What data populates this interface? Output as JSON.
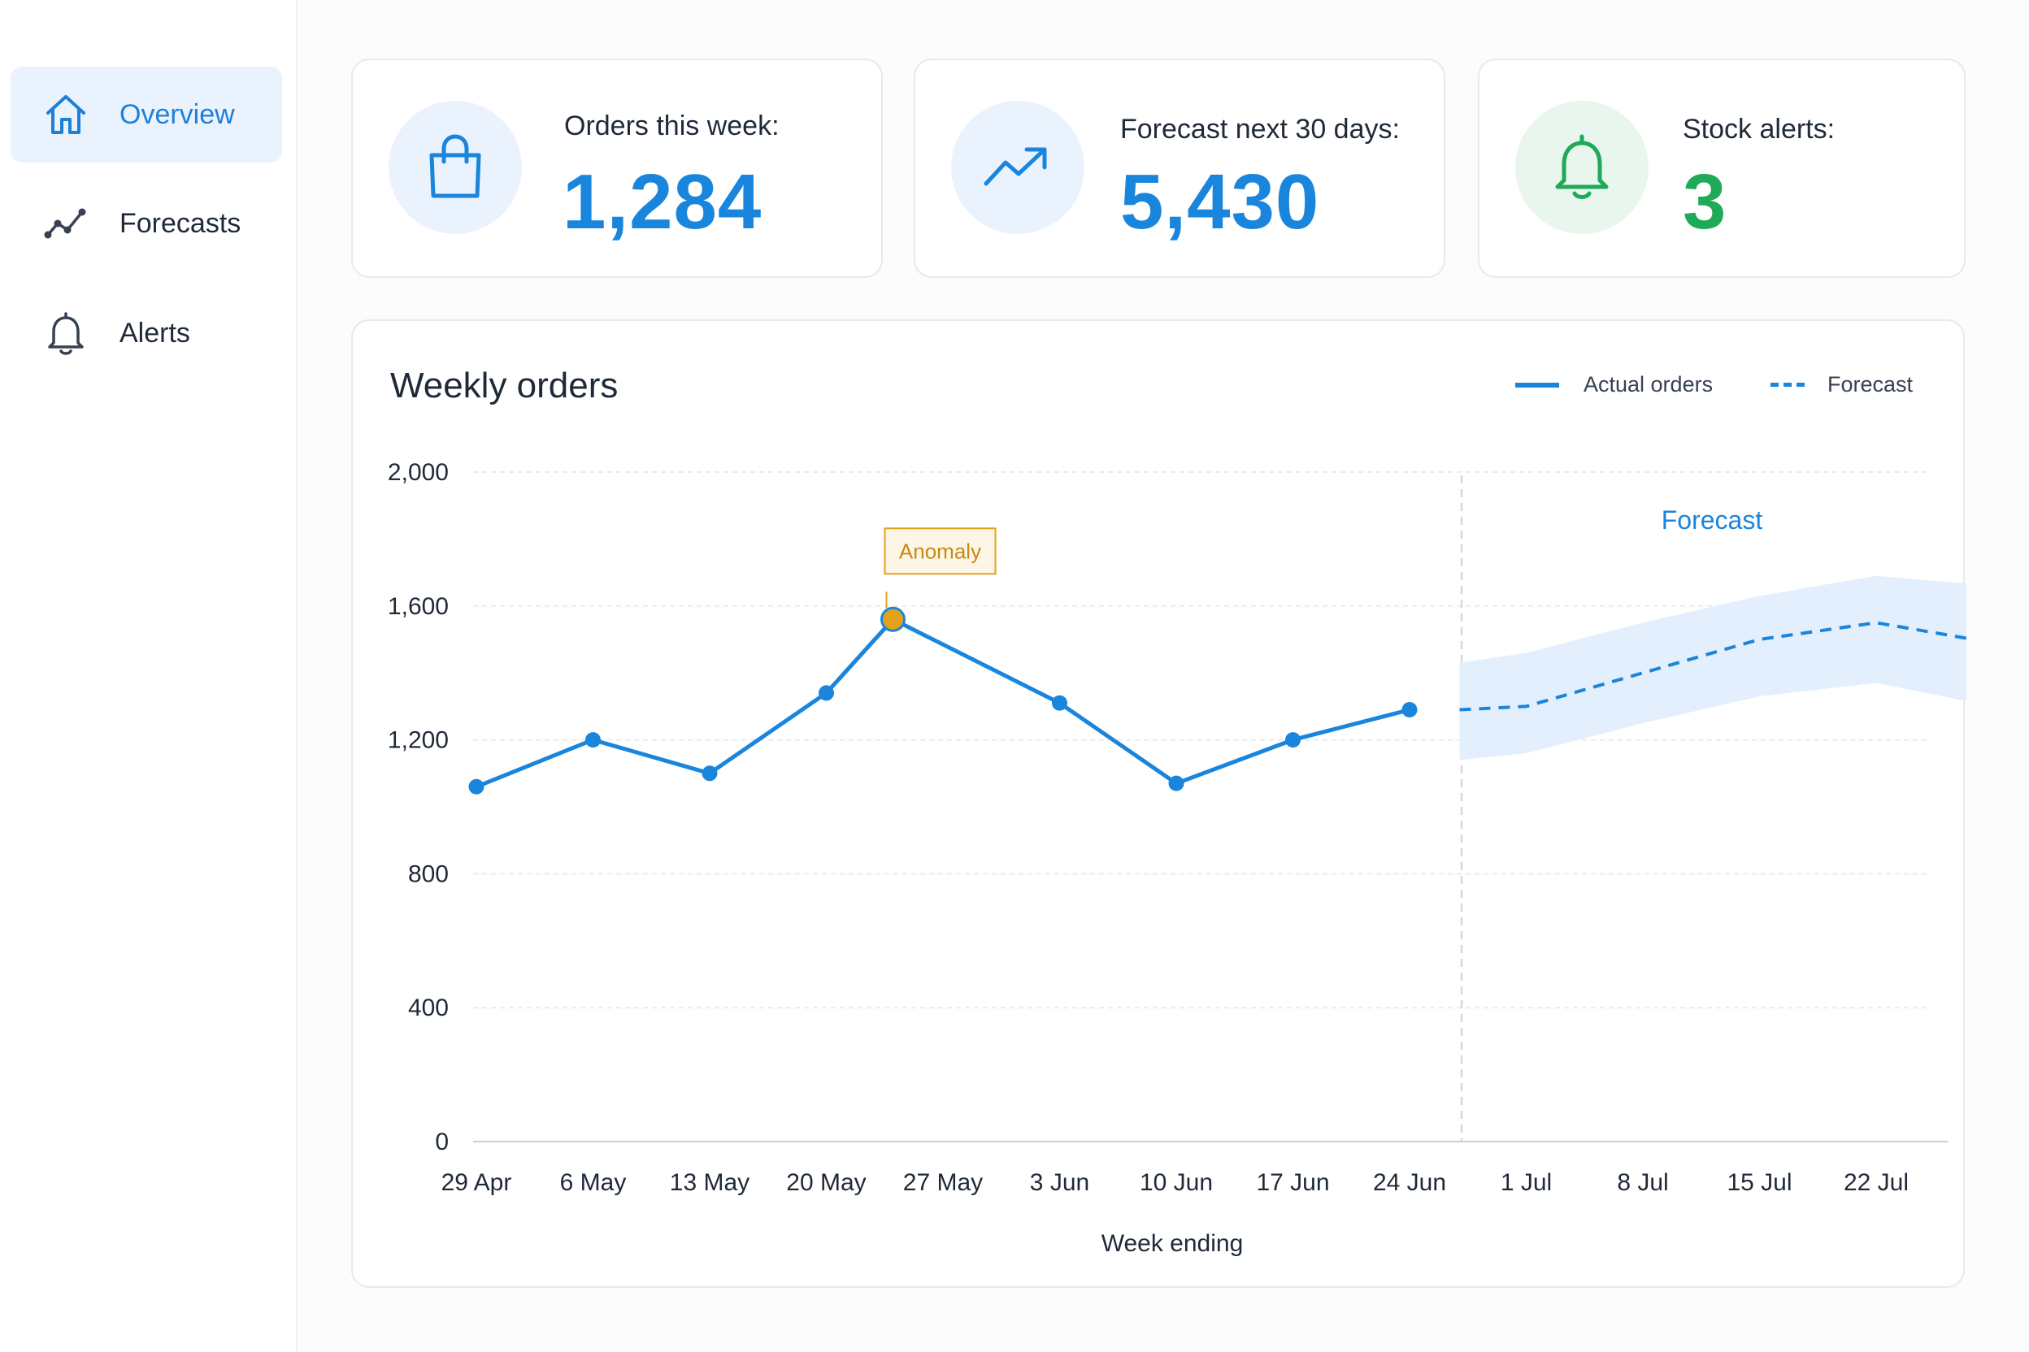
{
  "sidebar": {
    "items": [
      {
        "label": "Overview",
        "icon": "home-icon",
        "active": true
      },
      {
        "label": "Forecasts",
        "icon": "trend-line-icon",
        "active": false
      },
      {
        "label": "Alerts",
        "icon": "bell-icon",
        "active": false
      }
    ]
  },
  "kpis": {
    "orders": {
      "label": "Orders this week:",
      "value": "1,284",
      "icon": "shopping-bag-icon",
      "color": "#1a85dd"
    },
    "forecast": {
      "label": "Forecast next 30 days:",
      "value": "5,430",
      "icon": "trending-up-icon",
      "color": "#1a85dd"
    },
    "alerts": {
      "label": "Stock alerts:",
      "value": "3",
      "icon": "bell-icon",
      "color": "#1eaa57"
    }
  },
  "chart": {
    "title": "Weekly orders",
    "legend": {
      "actual": "Actual orders",
      "forecast": "Forecast"
    },
    "forecast_region_label": "Forecast",
    "anomaly_label": "Anomaly"
  },
  "colors": {
    "accent": "#1a85dd",
    "forecast_band": "#e3effc",
    "anomaly": "#e3a21a",
    "success": "#1eaa57"
  },
  "chart_data": {
    "type": "line",
    "title": "Weekly orders",
    "xlabel": "Week ending",
    "ylabel": "",
    "ylim": [
      0,
      2000
    ],
    "yticks": [
      "0",
      "400",
      "800",
      "1,200",
      "1,600",
      "2,000"
    ],
    "x": [
      "29 Apr",
      "6 May",
      "13 May",
      "20 May",
      "27 May",
      "3 Jun",
      "10 Jun",
      "17 Jun",
      "24 Jun",
      "1 Jul",
      "8 Jul",
      "15 Jul",
      "22 Jul"
    ],
    "series": [
      {
        "name": "Actual orders",
        "style": "solid",
        "points": [
          {
            "x": "29 Apr",
            "y": 1060
          },
          {
            "x": "6 May",
            "y": 1200
          },
          {
            "x": "13 May",
            "y": 1100
          },
          {
            "x": "20 May",
            "y": 1340
          },
          {
            "x": "24 May",
            "y": 1560,
            "anomaly": true
          },
          {
            "x": "3 Jun",
            "y": 1310
          },
          {
            "x": "10 Jun",
            "y": 1070
          },
          {
            "x": "17 Jun",
            "y": 1200
          },
          {
            "x": "24 Jun",
            "y": 1290
          }
        ]
      },
      {
        "name": "Forecast",
        "style": "dashed",
        "points": [
          {
            "x": "27 Jun",
            "y": 1290
          },
          {
            "x": "1 Jul",
            "y": 1300
          },
          {
            "x": "8 Jul",
            "y": 1400
          },
          {
            "x": "15 Jul",
            "y": 1500
          },
          {
            "x": "22 Jul",
            "y": 1550
          },
          {
            "x": "29 Jul",
            "y": 1490
          }
        ],
        "band_low": [
          1140,
          1160,
          1250,
          1330,
          1370,
          1300
        ],
        "band_high": [
          1430,
          1460,
          1550,
          1630,
          1690,
          1660
        ]
      }
    ],
    "grid": true,
    "legend_position": "top-right"
  }
}
